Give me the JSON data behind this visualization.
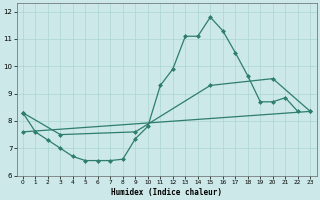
{
  "xlabel": "Humidex (Indice chaleur)",
  "bg_color": "#cce8e8",
  "grid_color": "#aad4d4",
  "line_color": "#2e7d6e",
  "xlim": [
    -0.5,
    23.5
  ],
  "ylim": [
    6,
    12.3
  ],
  "xticks": [
    0,
    1,
    2,
    3,
    4,
    5,
    6,
    7,
    8,
    9,
    10,
    11,
    12,
    13,
    14,
    15,
    16,
    17,
    18,
    19,
    20,
    21,
    22,
    23
  ],
  "yticks": [
    6,
    7,
    8,
    9,
    10,
    11,
    12
  ],
  "line1_x": [
    0,
    1,
    2,
    3,
    4,
    5,
    6,
    7,
    8,
    9,
    10,
    11,
    12,
    13,
    14,
    15,
    16,
    17,
    18,
    19,
    20,
    21,
    22
  ],
  "line1_y": [
    8.3,
    7.6,
    7.3,
    7.0,
    6.7,
    6.55,
    6.55,
    6.55,
    6.6,
    7.35,
    7.8,
    9.3,
    9.9,
    11.1,
    11.1,
    11.8,
    11.3,
    10.5,
    9.65,
    8.7,
    8.7,
    8.85,
    8.35
  ],
  "line2_x": [
    0,
    3,
    9,
    15,
    20,
    23
  ],
  "line2_y": [
    8.3,
    7.5,
    7.6,
    9.3,
    9.55,
    8.35
  ],
  "line3_x": [
    0,
    23
  ],
  "line3_y": [
    7.6,
    8.35
  ],
  "marker_size": 2.5,
  "linewidth": 0.9
}
